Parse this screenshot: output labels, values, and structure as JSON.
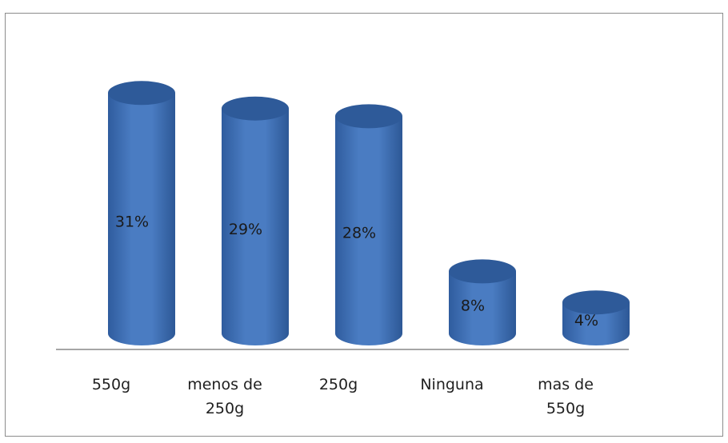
{
  "chart_data": {
    "type": "bar",
    "style": "3d-cylinder",
    "categories": [
      "550g",
      "menos de 250g",
      "250g",
      "Ninguna",
      "mas de 550g"
    ],
    "category_display": [
      "550g",
      "menos de\n250g",
      "250g",
      "Ninguna",
      "mas de\n550g"
    ],
    "values": [
      31,
      29,
      28,
      8,
      4
    ],
    "data_labels": [
      "31%",
      "29%",
      "28%",
      "8%",
      "4%"
    ],
    "unit": "%",
    "ylim": [
      0,
      32
    ],
    "grid": false,
    "legend": "none"
  },
  "colors": {
    "bar_body": "#3f6fb3",
    "bar_top": "#2e5a99",
    "axis": "#a6a6a6",
    "frame": "#8c8c8c",
    "label_text": "#1a1a1a"
  }
}
